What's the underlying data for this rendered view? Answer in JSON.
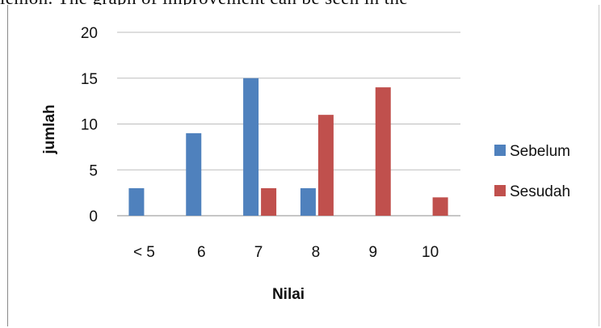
{
  "header_text": "lemon. The graph of improvement can be seen in the",
  "chart_data": {
    "type": "bar",
    "categories": [
      "< 5",
      "6",
      "7",
      "8",
      "9",
      "10"
    ],
    "series": [
      {
        "name": "Sebelum",
        "values": [
          3,
          9,
          15,
          3,
          0,
          0
        ],
        "color": "#4f81bd"
      },
      {
        "name": "Sesudah",
        "values": [
          0,
          0,
          3,
          11,
          14,
          2
        ],
        "color": "#c0504d"
      }
    ],
    "title": "",
    "xlabel": "Nilai",
    "ylabel": "jumlah",
    "ylim": [
      0,
      20
    ],
    "yticks": [
      "0",
      "5",
      "10",
      "15",
      "20"
    ],
    "grid": true,
    "legend": "right"
  }
}
